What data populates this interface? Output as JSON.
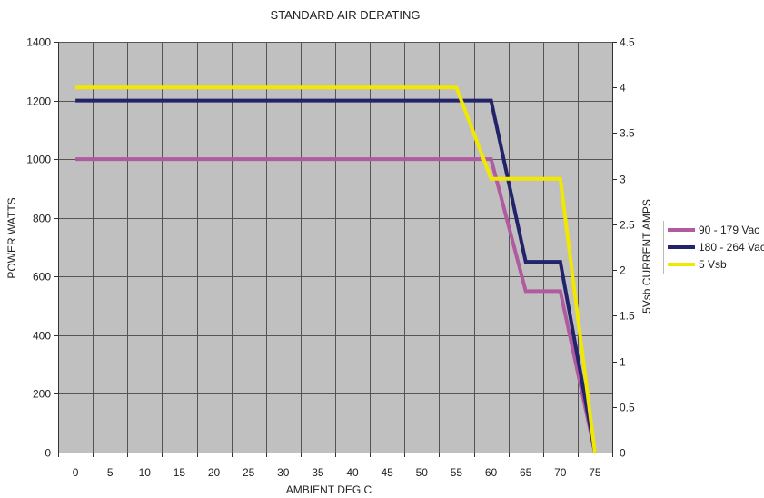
{
  "chart_data": {
    "type": "line",
    "title": "STANDARD AIR DERATING",
    "xlabel": "AMBIENT DEG C",
    "ylabel": "POWER WATTS",
    "y2label": "5Vsb CURRENT AMPS",
    "xlim": [
      -2.5,
      77.5
    ],
    "ylim": [
      0,
      1400
    ],
    "y2lim": [
      0,
      4.5
    ],
    "x_ticks": [
      0,
      5,
      10,
      15,
      20,
      25,
      30,
      35,
      40,
      45,
      50,
      55,
      60,
      65,
      70,
      75
    ],
    "y_ticks": [
      0,
      200,
      400,
      600,
      800,
      1000,
      1200,
      1400
    ],
    "y2_ticks": [
      0,
      0.5,
      1,
      1.5,
      2,
      2.5,
      3,
      3.5,
      4,
      4.5
    ],
    "grid": true,
    "legend_position": "right",
    "plot_background": "#c0c0c0",
    "series": [
      {
        "name": "90 - 179 Vac",
        "axis": "left",
        "color": "#b05aa0",
        "x": [
          0,
          60,
          65,
          70,
          75
        ],
        "y": [
          1000,
          1000,
          550,
          550,
          0
        ]
      },
      {
        "name": "180 - 264 Vac",
        "axis": "left",
        "color": "#23236b",
        "x": [
          0,
          60,
          65,
          70,
          75
        ],
        "y": [
          1200,
          1200,
          650,
          650,
          0
        ]
      },
      {
        "name": "5 Vsb",
        "axis": "right",
        "color": "#f0e800",
        "x": [
          0,
          55,
          60,
          70,
          75
        ],
        "y": [
          4,
          4,
          3,
          3,
          0
        ]
      }
    ]
  }
}
